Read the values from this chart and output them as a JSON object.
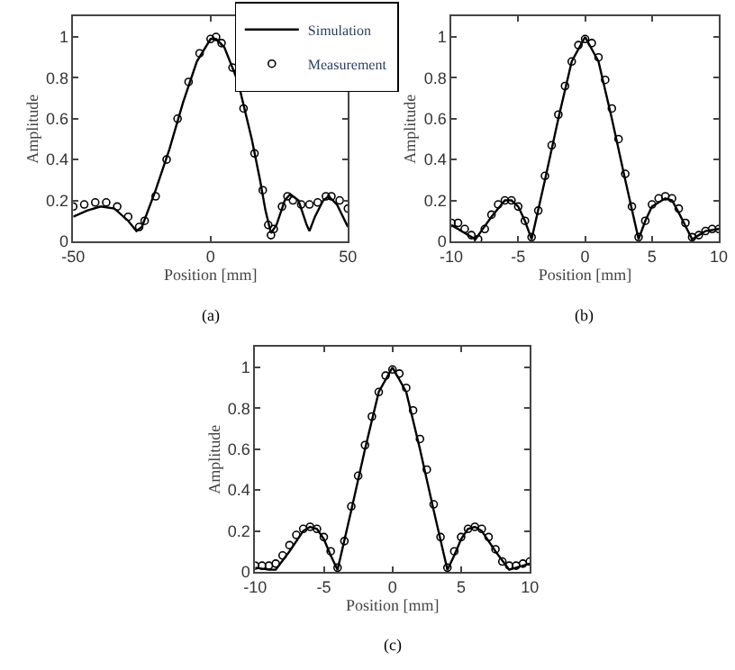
{
  "chart_data": [
    {
      "type": "line",
      "xlabel": "Position [mm]",
      "ylabel": "Amplitude",
      "annotations": [
        "(a)"
      ],
      "xlim": [
        -50,
        50
      ],
      "xticks": [
        -50,
        0,
        50
      ],
      "ylim": [
        0,
        1.1
      ],
      "yticks": [
        0,
        0.2,
        0.4,
        0.6,
        0.8,
        1
      ],
      "legend": "top right",
      "series": [
        {
          "name": "Simulation",
          "marker": "none",
          "color": "#000000",
          "x": [
            -50,
            -45,
            -40,
            -35,
            -30,
            -27,
            -25,
            -20,
            -15,
            -10,
            -5,
            0,
            2,
            5,
            10,
            15,
            18,
            20,
            22,
            24,
            27,
            29,
            32,
            35,
            36,
            38,
            41,
            43,
            46,
            50
          ],
          "values": [
            0.12,
            0.15,
            0.17,
            0.16,
            0.1,
            0.05,
            0.07,
            0.25,
            0.45,
            0.68,
            0.88,
            0.99,
            0.99,
            0.95,
            0.78,
            0.5,
            0.3,
            0.15,
            0.04,
            0.08,
            0.2,
            0.23,
            0.2,
            0.08,
            0.05,
            0.12,
            0.2,
            0.22,
            0.18,
            0.07
          ]
        },
        {
          "name": "Measurement",
          "type": "scatter",
          "marker": "circle",
          "color": "#000000",
          "x": [
            -50,
            -46,
            -42,
            -38,
            -34,
            -30,
            -26,
            -24,
            -20,
            -16,
            -12,
            -8,
            -4,
            0,
            2,
            4,
            8,
            12,
            16,
            19,
            21,
            22,
            23,
            26,
            28,
            30,
            33,
            36,
            39,
            42,
            44,
            47,
            50
          ],
          "values": [
            0.17,
            0.18,
            0.19,
            0.19,
            0.17,
            0.12,
            0.07,
            0.1,
            0.22,
            0.4,
            0.6,
            0.78,
            0.92,
            0.99,
            1.0,
            0.97,
            0.85,
            0.65,
            0.43,
            0.25,
            0.08,
            0.03,
            0.06,
            0.17,
            0.22,
            0.2,
            0.18,
            0.18,
            0.19,
            0.22,
            0.22,
            0.2,
            0.16
          ]
        }
      ]
    },
    {
      "type": "line",
      "xlabel": "Position [mm]",
      "ylabel": "Amplitude",
      "annotations": [
        "(b)"
      ],
      "xlim": [
        -10,
        10
      ],
      "xticks": [
        -10,
        -5,
        0,
        5,
        10
      ],
      "ylim": [
        0,
        1.1
      ],
      "yticks": [
        0,
        0.2,
        0.4,
        0.6,
        0.8,
        1
      ],
      "series": [
        {
          "marker": "none",
          "color": "#000000",
          "x": [
            -10,
            -9,
            -8.2,
            -7,
            -6,
            -5.5,
            -5,
            -4.5,
            -4,
            -3,
            -2,
            -1,
            0,
            1,
            2,
            3,
            4,
            4.5,
            5,
            6,
            6.5,
            7,
            8,
            8.5,
            9,
            10
          ],
          "values": [
            0.08,
            0.04,
            0.01,
            0.12,
            0.2,
            0.2,
            0.17,
            0.1,
            0.01,
            0.3,
            0.6,
            0.88,
            1.0,
            0.88,
            0.6,
            0.3,
            0.01,
            0.1,
            0.17,
            0.21,
            0.2,
            0.14,
            0.01,
            0.03,
            0.05,
            0.06
          ]
        },
        {
          "type": "scatter",
          "marker": "circle",
          "color": "#000000",
          "x": [
            -10,
            -9.5,
            -9,
            -8.5,
            -8,
            -7.5,
            -7,
            -6.5,
            -6,
            -5.5,
            -5,
            -4.5,
            -4,
            -3.5,
            -3,
            -2.5,
            -2,
            -1.5,
            -1,
            -0.5,
            0,
            0.5,
            1,
            1.5,
            2,
            2.5,
            3,
            3.5,
            4,
            4.5,
            5,
            5.5,
            6,
            6.5,
            7,
            7.5,
            8,
            8.5,
            9,
            9.5,
            10
          ],
          "values": [
            0.09,
            0.09,
            0.06,
            0.03,
            0.01,
            0.06,
            0.13,
            0.18,
            0.2,
            0.2,
            0.17,
            0.1,
            0.02,
            0.15,
            0.32,
            0.47,
            0.62,
            0.76,
            0.88,
            0.96,
            0.99,
            0.97,
            0.9,
            0.79,
            0.65,
            0.5,
            0.33,
            0.17,
            0.02,
            0.1,
            0.18,
            0.21,
            0.22,
            0.21,
            0.16,
            0.09,
            0.02,
            0.03,
            0.05,
            0.06,
            0.06
          ]
        }
      ]
    },
    {
      "type": "line",
      "xlabel": "Position [mm]",
      "ylabel": "Amplitude",
      "annotations": [
        "(c)"
      ],
      "xlim": [
        -10,
        10
      ],
      "xticks": [
        -10,
        -5,
        0,
        5,
        10
      ],
      "ylim": [
        0,
        1.1
      ],
      "yticks": [
        0,
        0.2,
        0.4,
        0.6,
        0.8,
        1
      ],
      "series": [
        {
          "marker": "none",
          "color": "#000000",
          "x": [
            -10,
            -9,
            -8.5,
            -7.5,
            -6.5,
            -6,
            -5.5,
            -5,
            -4.5,
            -4,
            -3,
            -2,
            -1,
            0,
            1,
            2,
            3,
            4,
            4.5,
            5,
            5.5,
            6,
            6.5,
            7.5,
            8.5,
            9,
            10
          ],
          "values": [
            0.02,
            0.01,
            0.01,
            0.1,
            0.2,
            0.22,
            0.21,
            0.16,
            0.08,
            0.01,
            0.3,
            0.6,
            0.88,
            1.0,
            0.88,
            0.6,
            0.3,
            0.01,
            0.08,
            0.16,
            0.21,
            0.22,
            0.2,
            0.1,
            0.01,
            0.02,
            0.04
          ]
        },
        {
          "type": "scatter",
          "marker": "circle",
          "color": "#000000",
          "x": [
            -10,
            -9.5,
            -9,
            -8.5,
            -8,
            -7.5,
            -7,
            -6.5,
            -6,
            -5.5,
            -5,
            -4.5,
            -4,
            -3.5,
            -3,
            -2.5,
            -2,
            -1.5,
            -1,
            -0.5,
            0,
            0.5,
            1,
            1.5,
            2,
            2.5,
            3,
            3.5,
            4,
            4.5,
            5,
            5.5,
            6,
            6.5,
            7,
            7.5,
            8,
            8.5,
            9,
            9.5,
            10
          ],
          "values": [
            0.03,
            0.03,
            0.03,
            0.04,
            0.08,
            0.13,
            0.18,
            0.21,
            0.22,
            0.21,
            0.17,
            0.1,
            0.02,
            0.15,
            0.32,
            0.47,
            0.62,
            0.76,
            0.88,
            0.96,
            0.99,
            0.97,
            0.9,
            0.79,
            0.65,
            0.5,
            0.33,
            0.17,
            0.02,
            0.1,
            0.17,
            0.21,
            0.22,
            0.21,
            0.17,
            0.11,
            0.05,
            0.03,
            0.03,
            0.04,
            0.05
          ]
        }
      ]
    }
  ]
}
